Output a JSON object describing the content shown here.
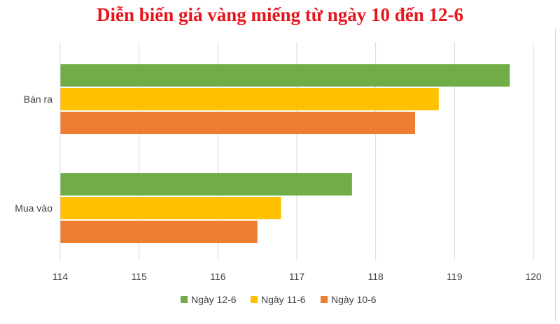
{
  "chart_data": {
    "type": "bar",
    "orientation": "horizontal",
    "title": "Diễn biến giá vàng miếng từ ngày 10 đến 12-6",
    "title_color": "#e8141b",
    "categories": [
      "Bán ra",
      "Mua vào"
    ],
    "series": [
      {
        "name": "Ngày 12-6",
        "color": "#70ad47",
        "values": [
          119.7,
          117.7
        ]
      },
      {
        "name": "Ngày 11-6",
        "color": "#ffc000",
        "values": [
          118.8,
          116.8
        ]
      },
      {
        "name": "Ngày 10-6",
        "color": "#ed7d31",
        "values": [
          118.5,
          116.5
        ]
      }
    ],
    "xlim": [
      114,
      120
    ],
    "xticks": [
      "114",
      "115",
      "116",
      "117",
      "118",
      "119",
      "120"
    ],
    "grid": true,
    "legend_position": "bottom"
  }
}
